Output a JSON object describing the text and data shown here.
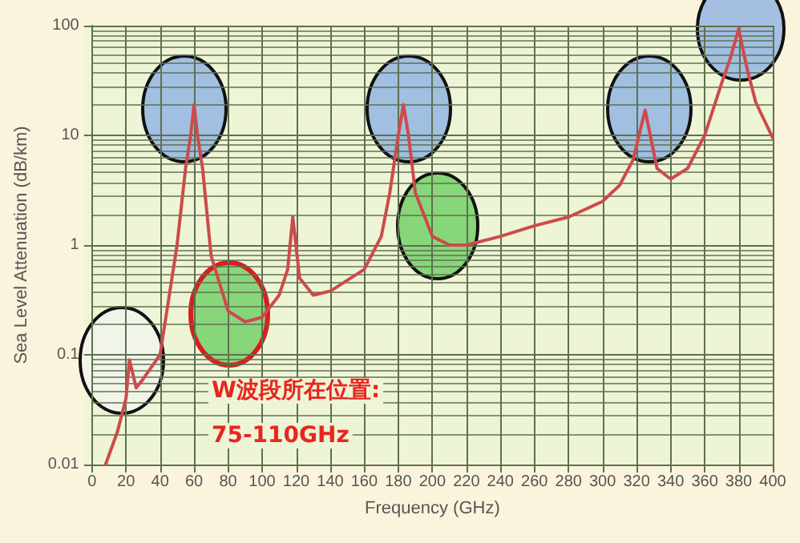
{
  "chart_data": {
    "type": "line",
    "xlabel": "Frequency (GHz)",
    "ylabel": "Sea Level Attenuation (dB/km)",
    "x": [
      8,
      15,
      20,
      22,
      26,
      30,
      40,
      50,
      55,
      58,
      60,
      62,
      65,
      70,
      80,
      90,
      100,
      110,
      115,
      118,
      122,
      130,
      140,
      160,
      170,
      175,
      180,
      183,
      186,
      190,
      200,
      210,
      220,
      240,
      260,
      280,
      300,
      310,
      318,
      325,
      332,
      340,
      350,
      360,
      370,
      375,
      380,
      385,
      390,
      400
    ],
    "series": [
      {
        "color": "#cc4b4b",
        "values": [
          0.01,
          0.02,
          0.04,
          0.09,
          0.05,
          0.06,
          0.1,
          1,
          5,
          10,
          19,
          10,
          5,
          0.8,
          0.25,
          0.2,
          0.22,
          0.35,
          0.6,
          1.8,
          0.5,
          0.35,
          0.38,
          0.6,
          1.2,
          3,
          10,
          19,
          10,
          3,
          1.2,
          1,
          1,
          1.2,
          1.5,
          1.8,
          2.5,
          3.5,
          6,
          17,
          5,
          4,
          5,
          10,
          30,
          50,
          93,
          40,
          20,
          9.5
        ]
      }
    ],
    "log": "y",
    "xlim": [
      0,
      400
    ],
    "xticks": [
      0,
      20,
      40,
      60,
      80,
      100,
      120,
      140,
      160,
      180,
      200,
      220,
      240,
      260,
      280,
      300,
      320,
      340,
      360,
      380,
      400
    ],
    "ylim": [
      0.01,
      100
    ],
    "yticks": [
      0.01,
      0.1,
      1,
      10,
      100
    ],
    "grid": true,
    "marker": "none",
    "line_style": "solid",
    "annotations": [
      "W波段所在位置:",
      "75-110GHz"
    ]
  }
}
